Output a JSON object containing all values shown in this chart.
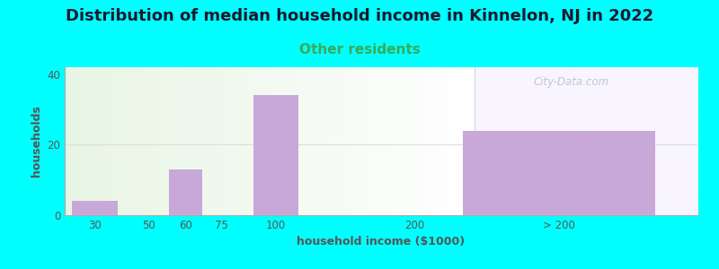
{
  "title": "Distribution of median household income in Kinnelon, NJ in 2022",
  "subtitle": "Other residents",
  "xlabel": "household income ($1000)",
  "ylabel": "households",
  "background_color": "#00ffff",
  "bar_color": "#c8a8d8",
  "title_fontsize": 13,
  "title_color": "#1a1a2e",
  "subtitle_fontsize": 11,
  "subtitle_color": "#3aaa55",
  "axis_label_fontsize": 9,
  "axis_label_color": "#555555",
  "tick_label_fontsize": 8.5,
  "tick_label_color": "#555555",
  "watermark": "City-Data.com",
  "watermark_color": "#bbbbcc",
  "categories": [
    "30",
    "50",
    "60",
    "75",
    "100",
    "200",
    "> 200"
  ],
  "values": [
    4,
    0,
    13,
    0,
    34,
    0,
    24
  ],
  "ylim": [
    0,
    42
  ],
  "yticks": [
    0,
    20,
    40
  ],
  "figsize": [
    8.0,
    3.0
  ],
  "dpi": 100,
  "left_bg": "#e8f5e4",
  "right_bg": "#f5f0fa",
  "grid_color": "#dddddd"
}
